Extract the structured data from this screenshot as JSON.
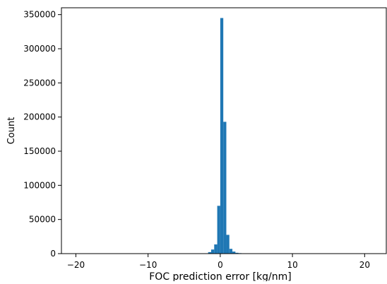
{
  "chart_data": {
    "type": "bar",
    "title": "",
    "xlabel": "FOC prediction error [kg/nm]",
    "ylabel": "Count",
    "xlim": [
      -22,
      23
    ],
    "ylim": [
      0,
      360000
    ],
    "x_ticks": [
      -20,
      -10,
      0,
      10,
      20
    ],
    "y_ticks": [
      0,
      50000,
      100000,
      150000,
      200000,
      250000,
      300000,
      350000
    ],
    "bin_width": 0.42,
    "bar_color": "#1f77b4",
    "grid": false,
    "bins": [
      {
        "x0": -2.1,
        "count": 400
      },
      {
        "x0": -1.68,
        "count": 2200
      },
      {
        "x0": -1.26,
        "count": 6000
      },
      {
        "x0": -0.84,
        "count": 13500
      },
      {
        "x0": -0.42,
        "count": 70000
      },
      {
        "x0": 0.0,
        "count": 345000
      },
      {
        "x0": 0.42,
        "count": 193000
      },
      {
        "x0": 0.84,
        "count": 27500
      },
      {
        "x0": 1.26,
        "count": 7000
      },
      {
        "x0": 1.68,
        "count": 3000
      },
      {
        "x0": 2.1,
        "count": 1200
      },
      {
        "x0": 2.52,
        "count": 700
      },
      {
        "x0": 2.94,
        "count": 300
      }
    ]
  }
}
